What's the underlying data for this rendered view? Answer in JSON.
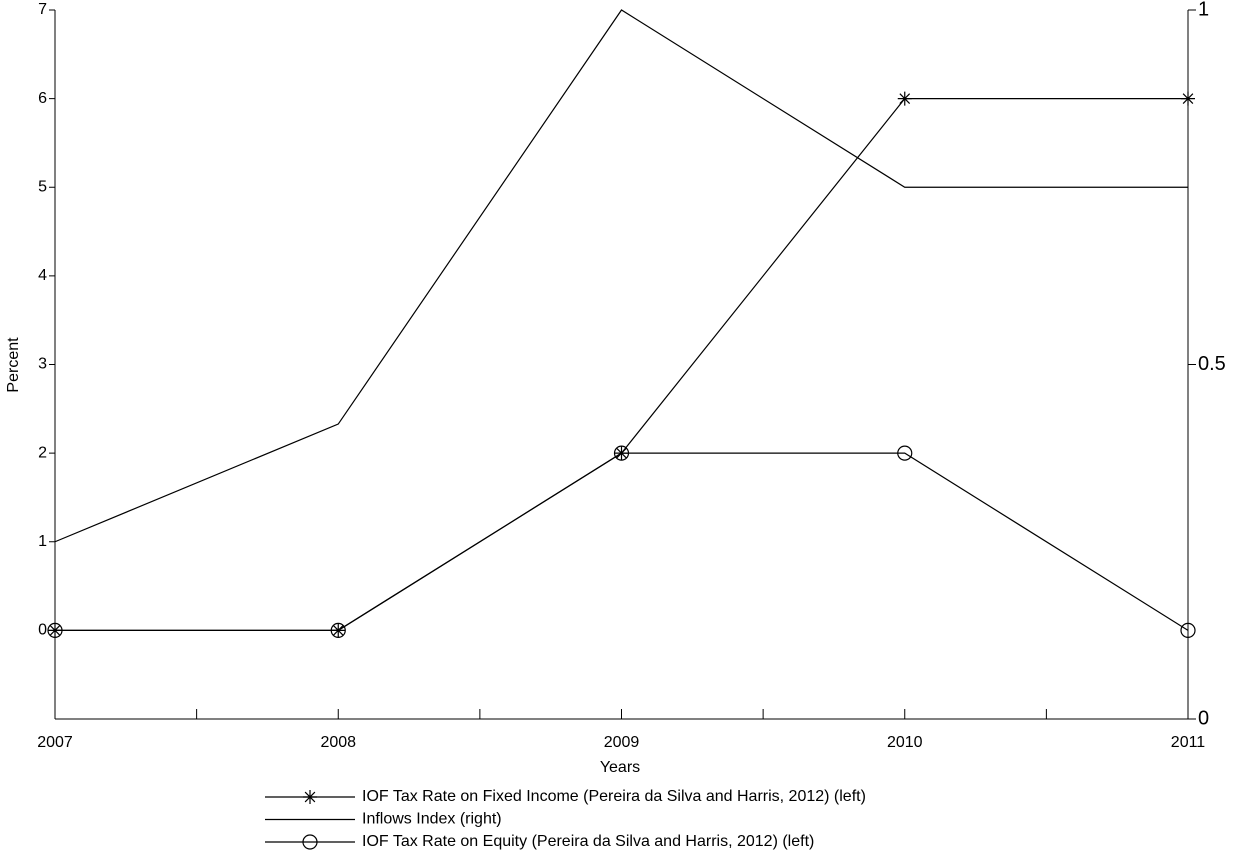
{
  "chart_data": {
    "type": "line",
    "x": [
      2007,
      2008,
      2009,
      2010,
      2011
    ],
    "xlim": [
      2007,
      2011
    ],
    "xticks": [
      2007,
      2008,
      2009,
      2010,
      2011
    ],
    "xminorticks": [
      2007.5,
      2008.5,
      2009.5,
      2010.5
    ],
    "ylim": [
      -1,
      7
    ],
    "yticks": [
      0,
      1,
      2,
      3,
      4,
      5,
      6,
      7
    ],
    "y2lim": [
      0,
      1
    ],
    "y2ticks": [
      0,
      0.5,
      1
    ],
    "xlabel": "Years",
    "ylabel": "Percent",
    "legend": "bottom",
    "series": [
      {
        "name": "IOF Tax Rate on Fixed Income (Pereira da Silva and Harris, 2012) (left)",
        "color": "#000000",
        "marker": "asterisk",
        "values": [
          0,
          0,
          2,
          6,
          6
        ]
      },
      {
        "name": "Inflows Index (right)",
        "color": "#000000",
        "marker": "none",
        "axis": "y2",
        "values": [
          0.25,
          0.416,
          1,
          0.75,
          0.75
        ]
      },
      {
        "name": "IOF Tax Rate on Equity (Pereira da Silva and Harris, 2012) (left)",
        "color": "#000000",
        "marker": "circle",
        "values": [
          0,
          0,
          2,
          2,
          0
        ]
      }
    ]
  }
}
